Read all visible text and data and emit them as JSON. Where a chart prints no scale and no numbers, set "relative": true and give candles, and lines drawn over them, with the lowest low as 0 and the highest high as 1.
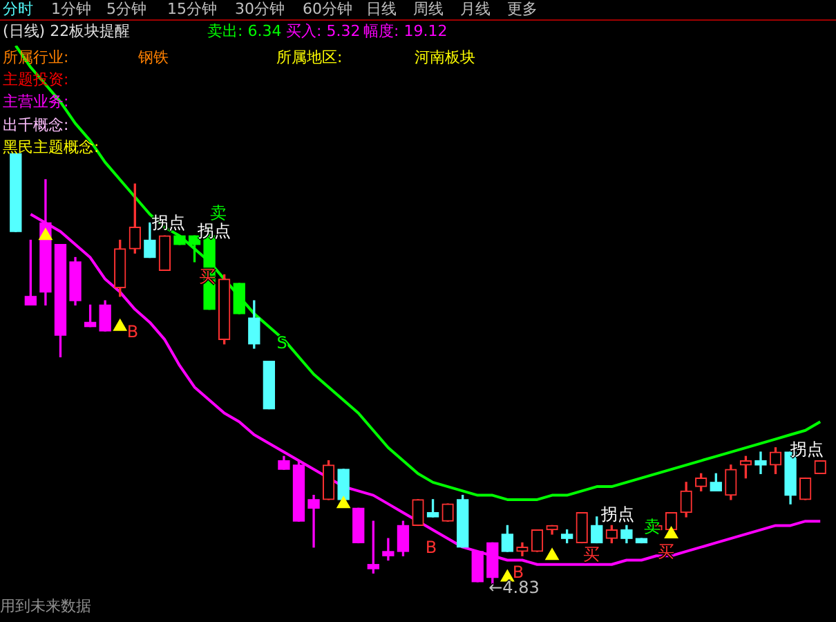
{
  "chart_data": {
    "type": "candlestick",
    "title": "(日线) 22板块提醒",
    "relative": true,
    "legend": false,
    "categories": [
      null,
      null,
      null,
      null,
      null,
      null,
      null,
      null,
      null,
      null,
      null,
      null,
      null,
      null,
      null,
      null,
      null,
      null,
      null,
      null,
      null,
      null,
      null,
      null,
      null,
      null,
      null,
      null,
      null,
      null,
      null,
      null,
      null,
      null,
      null,
      null,
      null,
      null,
      null,
      null,
      null,
      null,
      null,
      null,
      null,
      null,
      null,
      null,
      null,
      null,
      null,
      null,
      null,
      null,
      null
    ],
    "ohlc": [
      [
        1,
        1,
        0.82,
        0.82
      ],
      [
        0.67,
        0.8,
        0.65,
        0.65
      ],
      [
        0.84,
        0.94,
        0.65,
        0.68
      ],
      [
        0.79,
        0.79,
        0.53,
        0.58
      ],
      [
        0.75,
        0.76,
        0.65,
        0.66
      ],
      [
        0.61,
        0.65,
        0.6,
        0.6
      ],
      [
        0.65,
        0.66,
        0.59,
        0.59
      ],
      [
        0.69,
        0.8,
        0.67,
        0.78
      ],
      [
        0.78,
        0.93,
        0.77,
        0.83
      ],
      [
        0.8,
        0.84,
        0.76,
        0.76
      ],
      [
        0.73,
        0.81,
        0.73,
        0.81
      ],
      [
        0.81,
        0.81,
        0.79,
        0.79
      ],
      [
        0.81,
        0.81,
        0.75,
        0.79
      ],
      [
        0.81,
        0.83,
        0.64,
        0.64
      ],
      [
        0.57,
        0.72,
        0.56,
        0.71
      ],
      [
        0.7,
        0.7,
        0.63,
        0.63
      ],
      [
        0.62,
        0.66,
        0.55,
        0.56
      ],
      [
        0.52,
        0.52,
        0.41,
        0.41
      ],
      [
        0.29,
        0.3,
        0.27,
        0.27
      ],
      [
        0.28,
        0.29,
        0.15,
        0.15
      ],
      [
        0.2,
        0.21,
        0.09,
        0.18
      ],
      [
        0.2,
        0.29,
        0.2,
        0.28
      ],
      [
        0.27,
        0.27,
        0.2,
        0.2
      ],
      [
        0.18,
        0.18,
        0.1,
        0.1
      ],
      [
        0.05,
        0.15,
        0.03,
        0.04
      ],
      [
        0.08,
        0.11,
        0.06,
        0.07
      ],
      [
        0.14,
        0.15,
        0.07,
        0.08
      ],
      [
        0.14,
        0.2,
        0.14,
        0.2
      ],
      [
        0.17,
        0.2,
        0.16,
        0.16
      ],
      [
        0.15,
        0.19,
        0.15,
        0.19
      ],
      [
        0.2,
        0.21,
        0.09,
        0.09
      ],
      [
        0.08,
        0.08,
        0.01,
        0.01
      ],
      [
        0.1,
        0.1,
        0,
        0.02
      ],
      [
        0.12,
        0.14,
        0.08,
        0.08
      ],
      [
        0.08,
        0.1,
        0.07,
        0.09
      ],
      [
        0.08,
        0.13,
        0.08,
        0.13
      ],
      [
        0.13,
        0.14,
        0.12,
        0.14
      ],
      [
        0.12,
        0.13,
        0.1,
        0.11
      ],
      [
        0.1,
        0.17,
        0.1,
        0.17
      ],
      [
        0.14,
        0.16,
        0.1,
        0.1
      ],
      [
        0.11,
        0.14,
        0.1,
        0.13
      ],
      [
        0.13,
        0.14,
        0.1,
        0.11
      ],
      [
        0.11,
        0.11,
        0.1,
        0.1
      ],
      [
        0.13,
        0.14,
        0.13,
        0.14
      ],
      [
        0.13,
        0.17,
        0.13,
        0.17
      ],
      [
        0.17,
        0.24,
        0.16,
        0.22
      ],
      [
        0.23,
        0.26,
        0.22,
        0.25
      ],
      [
        0.24,
        0.26,
        0.22,
        0.22
      ],
      [
        0.21,
        0.28,
        0.2,
        0.27
      ],
      [
        0.28,
        0.3,
        0.25,
        0.29
      ],
      [
        0.29,
        0.31,
        0.26,
        0.28
      ],
      [
        0.28,
        0.32,
        0.26,
        0.31
      ],
      [
        0.31,
        0.31,
        0.19,
        0.21
      ],
      [
        0.2,
        0.25,
        0.2,
        0.25
      ],
      [
        0.26,
        0.29,
        0.26,
        0.29
      ]
    ],
    "colors": [
      "#54ffff",
      "#ff00ff",
      "#ff00ff",
      "#ff00ff",
      "#ff00ff",
      "#ff00ff",
      "#ff00ff",
      "#ff3232",
      "#ff3232",
      "#54ffff",
      "#ff3232",
      "#00ff00",
      "#00ff00",
      "#00ff00",
      "#ff3232",
      "#00ff00",
      "#54ffff",
      "#54ffff",
      "#ff00ff",
      "#ff00ff",
      "#ff00ff",
      "#ff3232",
      "#54ffff",
      "#ff00ff",
      "#ff00ff",
      "#ff00ff",
      "#ff00ff",
      "#ff3232",
      "#54ffff",
      "#ff3232",
      "#54ffff",
      "#ff00ff",
      "#ff00ff",
      "#54ffff",
      "#ff3232",
      "#ff3232",
      "#ff3232",
      "#54ffff",
      "#ff3232",
      "#54ffff",
      "#ff3232",
      "#54ffff",
      "#54ffff",
      "#ff3232",
      "#ff3232",
      "#ff3232",
      "#ff3232",
      "#54ffff",
      "#ff3232",
      "#ff3232",
      "#54ffff",
      "#ff3232",
      "#54ffff",
      "#ff3232",
      "#ff3232"
    ],
    "series": [
      {
        "type": "line",
        "color": "#00ff00",
        "values": [
          1.25,
          1.2,
          1.16,
          1.12,
          1.07,
          1.03,
          0.98,
          0.94,
          0.9,
          0.86,
          0.83,
          0.81,
          0.78,
          0.75,
          0.71,
          0.67,
          0.63,
          0.6,
          0.57,
          0.53,
          0.49,
          0.46,
          0.43,
          0.4,
          0.36,
          0.32,
          0.29,
          0.26,
          0.24,
          0.23,
          0.22,
          0.21,
          0.21,
          0.2,
          0.2,
          0.2,
          0.21,
          0.21,
          0.22,
          0.23,
          0.23,
          0.24,
          0.25,
          0.26,
          0.27,
          0.28,
          0.29,
          0.3,
          0.31,
          0.32,
          0.33,
          0.34,
          0.35,
          0.36,
          0.38
        ]
      },
      {
        "type": "line",
        "color": "#ff00ff",
        "values": [
          null,
          0.86,
          0.84,
          0.82,
          0.79,
          0.76,
          0.71,
          0.68,
          0.64,
          0.61,
          0.57,
          0.51,
          0.46,
          0.43,
          0.4,
          0.38,
          0.35,
          0.33,
          0.31,
          0.29,
          0.27,
          0.25,
          0.23,
          0.22,
          0.21,
          0.19,
          0.17,
          0.15,
          0.13,
          0.11,
          0.09,
          0.08,
          0.07,
          0.06,
          0.06,
          0.05,
          0.05,
          0.05,
          0.05,
          0.05,
          0.05,
          0.06,
          0.06,
          0.07,
          0.07,
          0.08,
          0.09,
          0.1,
          0.11,
          0.12,
          0.13,
          0.14,
          0.14,
          0.15,
          0.15
        ]
      },
      {
        "type": "scatter",
        "marker": "triangle",
        "color": "#ffff00",
        "values": [
          null,
          null,
          0.81,
          null,
          null,
          null,
          null,
          0.6,
          null,
          null,
          null,
          null,
          null,
          null,
          null,
          null,
          null,
          null,
          null,
          null,
          null,
          null,
          0.19,
          null,
          null,
          null,
          null,
          null,
          null,
          null,
          null,
          null,
          null,
          0.02,
          null,
          null,
          0.07,
          null,
          null,
          null,
          null,
          null,
          null,
          null,
          0.12,
          null,
          null,
          null,
          null,
          null,
          null,
          null,
          null,
          null,
          null
        ]
      }
    ],
    "annotations": [
      "分时",
      "1分钟",
      "5分钟",
      "15分钟",
      "30分钟",
      "60分钟",
      "日线",
      "周线",
      "月线",
      "更多",
      "卖出: 6.34",
      "买入: 5.32",
      "幅度: 19.12",
      "所属行业:",
      "钢铁",
      "所属地区:",
      "河南板块",
      "主题投资:",
      "主营业务:",
      "出千概念:",
      "黑民主题概念:",
      "用到未来数据",
      "B",
      "B",
      "B",
      "S",
      "拐点",
      "拐点",
      "拐点",
      "拐点",
      "卖",
      "卖",
      "买",
      "买",
      "买",
      "←4.83"
    ]
  }
}
